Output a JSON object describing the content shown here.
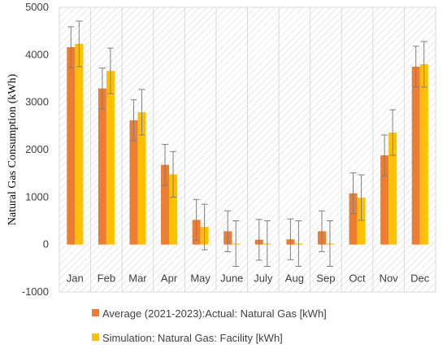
{
  "chart_data": {
    "type": "bar",
    "title": "",
    "xlabel": "",
    "ylabel": "Natural Gas Consumption (kWh)",
    "ylim": [
      -1000,
      5000
    ],
    "yticks": [
      -1000,
      0,
      1000,
      2000,
      3000,
      4000,
      5000
    ],
    "grid": "vertical category dividers, hatched background",
    "legend_position": "bottom",
    "categories": [
      "Jan",
      "Feb",
      "Mar",
      "Apr",
      "May",
      "June",
      "July",
      "Aug",
      "Sep",
      "Oct",
      "Nov",
      "Dec"
    ],
    "series": [
      {
        "name": "Average (2021-2023):Actual: Natural Gas [kWh]",
        "color": "#ED7D31",
        "values": [
          4160,
          3290,
          2620,
          1680,
          520,
          280,
          100,
          110,
          280,
          1080,
          1880,
          3750
        ],
        "error": [
          430,
          430,
          430,
          430,
          430,
          430,
          430,
          430,
          430,
          430,
          430,
          430
        ]
      },
      {
        "name": "Simulation: Natural Gas: Facility [kWh]",
        "color": "#FFC000",
        "values": [
          4230,
          3660,
          2790,
          1480,
          370,
          20,
          20,
          20,
          20,
          990,
          2360,
          3800
        ],
        "error": [
          480,
          480,
          480,
          480,
          480,
          480,
          480,
          480,
          480,
          480,
          480,
          480
        ]
      }
    ]
  }
}
